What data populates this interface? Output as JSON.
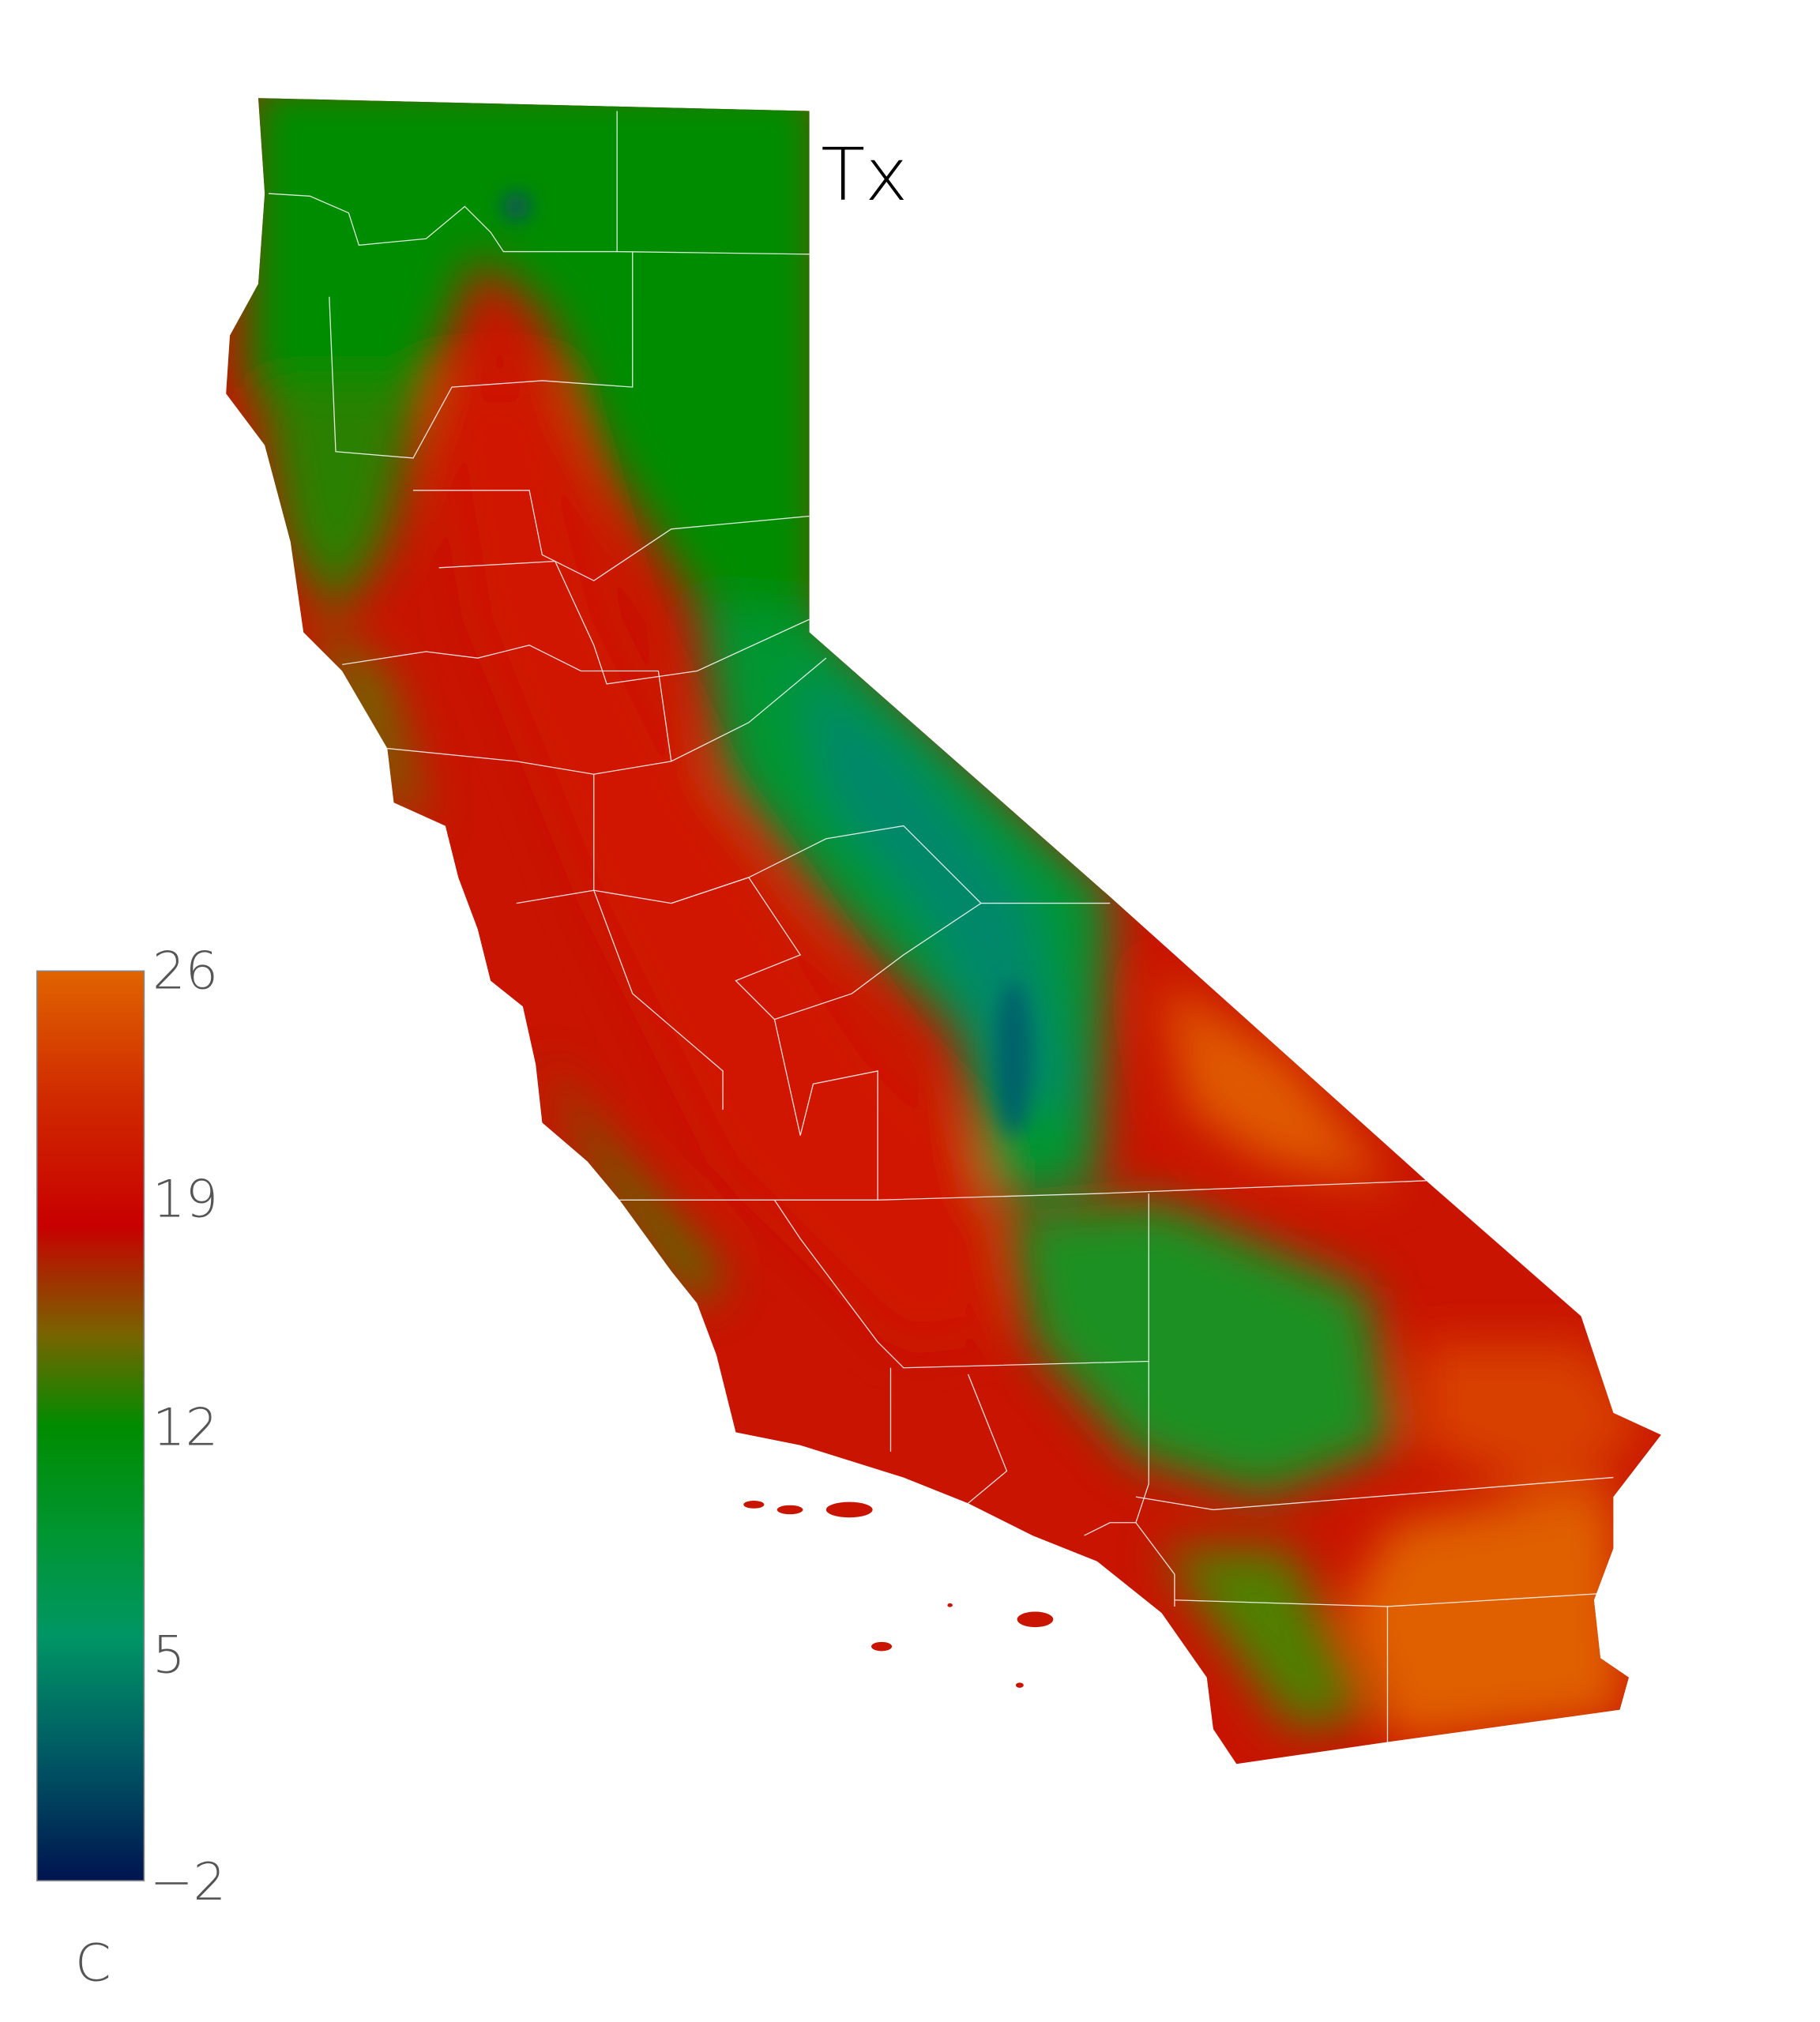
{
  "map": {
    "title": "Tx",
    "region": "California",
    "boundaries": "county lines",
    "colors": {
      "hot": "#e06400",
      "warm": "#c80000",
      "mid": "#786400",
      "cool": "#008c00",
      "cold_teal": "#009664",
      "coldest": "#001450",
      "county_lines": "#ffffff"
    }
  },
  "colorbar": {
    "unit": "C",
    "min": -2,
    "max": 26,
    "ticks": [
      "26",
      "19",
      "12",
      "5",
      "−2"
    ],
    "tick_values": [
      26,
      19,
      12,
      5,
      -2
    ],
    "stops": [
      "#e06400",
      "#d02a00",
      "#c80000",
      "#786400",
      "#008c00",
      "#009632",
      "#009664",
      "#005a64",
      "#001450"
    ]
  }
}
